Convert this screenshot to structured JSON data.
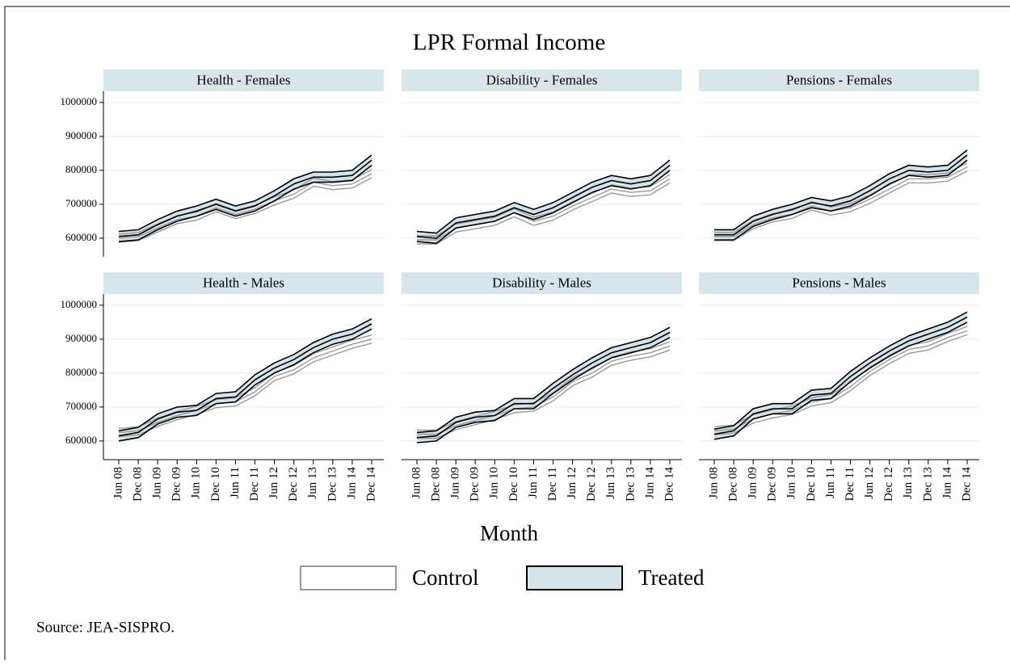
{
  "title": "LPR Formal Income",
  "x_label": "Month",
  "source": "Source: JEA-SISPRO.",
  "chart_data": [
    {
      "type": "band-line",
      "title": "Health - Females",
      "categories": [
        "Jun 08",
        "Dec 08",
        "Jun 09",
        "Dec 09",
        "Jun 10",
        "Dec 10",
        "Jun 11",
        "Dec 11",
        "Jun 12",
        "Dec 12",
        "Jun 13",
        "Dec 13",
        "Jun 14",
        "Dec 14"
      ],
      "ylim": [
        545000,
        1033000
      ],
      "yticks": [
        600000,
        700000,
        800000,
        900000,
        1000000
      ],
      "series": [
        {
          "name": "Control",
          "color": "#999999",
          "fill": "#ffffff",
          "error": 12000,
          "values": [
            600000,
            605000,
            630000,
            655000,
            665000,
            690000,
            670000,
            685000,
            710000,
            730000,
            765000,
            755000,
            760000,
            790000
          ]
        },
        {
          "name": "Treated",
          "color": "#000000",
          "fill": "#d5e3ea",
          "error": 15000,
          "values": [
            605000,
            610000,
            640000,
            665000,
            680000,
            700000,
            680000,
            695000,
            725000,
            760000,
            780000,
            780000,
            785000,
            830000
          ]
        }
      ]
    },
    {
      "type": "band-line",
      "title": "Disability - Females",
      "categories": [
        "Jun 08",
        "Dec 08",
        "Jun 09",
        "Dec 09",
        "Jun 10",
        "Dec 10",
        "Jun 11",
        "Dec 11",
        "Jun 12",
        "Dec 12",
        "Jun 13",
        "Dec 13",
        "Jun 14",
        "Dec 14"
      ],
      "ylim": [
        545000,
        1033000
      ],
      "yticks": [
        600000,
        700000,
        800000,
        900000,
        1000000
      ],
      "series": [
        {
          "name": "Control",
          "color": "#999999",
          "fill": "#ffffff",
          "error": 12000,
          "values": [
            595000,
            595000,
            630000,
            640000,
            650000,
            675000,
            650000,
            665000,
            695000,
            720000,
            745000,
            735000,
            740000,
            775000
          ]
        },
        {
          "name": "Treated",
          "color": "#000000",
          "fill": "#d5e3ea",
          "error": 15000,
          "values": [
            605000,
            600000,
            645000,
            655000,
            665000,
            690000,
            670000,
            690000,
            720000,
            750000,
            770000,
            760000,
            770000,
            815000
          ]
        }
      ]
    },
    {
      "type": "band-line",
      "title": "Pensions - Females",
      "categories": [
        "Jun 08",
        "Dec 08",
        "Jun 09",
        "Dec 09",
        "Jun 10",
        "Dec 10",
        "Jun 11",
        "Dec 11",
        "Jun 12",
        "Dec 12",
        "Jun 13",
        "Dec 13",
        "Jun 14",
        "Dec 14"
      ],
      "ylim": [
        545000,
        1033000
      ],
      "yticks": [
        600000,
        700000,
        800000,
        900000,
        1000000
      ],
      "series": [
        {
          "name": "Control",
          "color": "#999999",
          "fill": "#ffffff",
          "error": 12000,
          "values": [
            605000,
            605000,
            640000,
            660000,
            670000,
            695000,
            680000,
            690000,
            715000,
            745000,
            775000,
            775000,
            780000,
            810000
          ]
        },
        {
          "name": "Treated",
          "color": "#000000",
          "fill": "#d5e3ea",
          "error": 15000,
          "values": [
            610000,
            610000,
            650000,
            670000,
            685000,
            705000,
            695000,
            710000,
            740000,
            775000,
            800000,
            795000,
            800000,
            845000
          ]
        }
      ]
    },
    {
      "type": "band-line",
      "title": "Health - Males",
      "categories": [
        "Jun 08",
        "Dec 08",
        "Jun 09",
        "Dec 09",
        "Jun 10",
        "Dec 10",
        "Jun 11",
        "Dec 11",
        "Jun 12",
        "Dec 12",
        "Jun 13",
        "Dec 13",
        "Jun 14",
        "Dec 14"
      ],
      "ylim": [
        545000,
        1033000
      ],
      "yticks": [
        600000,
        700000,
        800000,
        900000,
        1000000
      ],
      "series": [
        {
          "name": "Control",
          "color": "#999999",
          "fill": "#ffffff",
          "error": 12000,
          "values": [
            625000,
            630000,
            655000,
            675000,
            690000,
            710000,
            715000,
            745000,
            790000,
            810000,
            845000,
            865000,
            885000,
            900000
          ]
        },
        {
          "name": "Treated",
          "color": "#000000",
          "fill": "#d5e3ea",
          "error": 15000,
          "values": [
            615000,
            625000,
            665000,
            685000,
            690000,
            725000,
            730000,
            780000,
            815000,
            840000,
            875000,
            900000,
            915000,
            945000
          ]
        }
      ]
    },
    {
      "type": "band-line",
      "title": "Disability - Males",
      "categories": [
        "Jun 08",
        "Dec 08",
        "Jun 09",
        "Dec 09",
        "Jun 10",
        "Dec 10",
        "Jun 11",
        "Dec 11",
        "Jun 12",
        "Dec 12",
        "Jun 13",
        "Dec 13",
        "Jun 14",
        "Dec 14"
      ],
      "ylim": [
        545000,
        1033000
      ],
      "yticks": [
        600000,
        700000,
        800000,
        900000,
        1000000
      ],
      "series": [
        {
          "name": "Control",
          "color": "#999999",
          "fill": "#ffffff",
          "error": 12000,
          "values": [
            620000,
            620000,
            645000,
            660000,
            675000,
            695000,
            700000,
            730000,
            775000,
            800000,
            835000,
            850000,
            860000,
            880000
          ]
        },
        {
          "name": "Treated",
          "color": "#000000",
          "fill": "#d5e3ea",
          "error": 15000,
          "values": [
            610000,
            615000,
            655000,
            670000,
            675000,
            710000,
            710000,
            755000,
            795000,
            830000,
            860000,
            875000,
            890000,
            920000
          ]
        }
      ]
    },
    {
      "type": "band-line",
      "title": "Pensions - Males",
      "categories": [
        "Jun 08",
        "Dec 08",
        "Jun 09",
        "Dec 09",
        "Jun 10",
        "Dec 10",
        "Jun 11",
        "Dec 11",
        "Jun 12",
        "Dec 12",
        "Jun 13",
        "Dec 13",
        "Jun 14",
        "Dec 14"
      ],
      "ylim": [
        545000,
        1033000
      ],
      "yticks": [
        600000,
        700000,
        800000,
        900000,
        1000000
      ],
      "series": [
        {
          "name": "Control",
          "color": "#999999",
          "fill": "#ffffff",
          "error": 12000,
          "values": [
            630000,
            635000,
            665000,
            680000,
            690000,
            715000,
            725000,
            760000,
            805000,
            840000,
            870000,
            880000,
            905000,
            925000
          ]
        },
        {
          "name": "Treated",
          "color": "#000000",
          "fill": "#d5e3ea",
          "error": 15000,
          "values": [
            620000,
            630000,
            680000,
            695000,
            695000,
            735000,
            740000,
            790000,
            830000,
            865000,
            895000,
            915000,
            935000,
            965000
          ]
        }
      ]
    }
  ]
}
